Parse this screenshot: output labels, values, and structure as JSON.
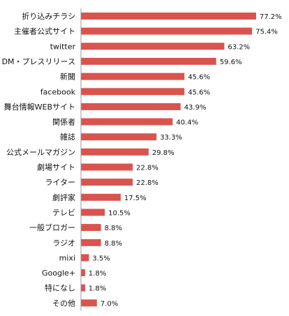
{
  "chart_data": {
    "type": "bar",
    "orientation": "horizontal",
    "categories": [
      "折り込みチラシ",
      "主催者公式サイト",
      "twitter",
      "DM・プレスリリース",
      "新聞",
      "facebook",
      "舞台情報WEBサイト",
      "関係者",
      "雑誌",
      "公式メールマガジン",
      "劇場サイト",
      "ライター",
      "劇評家",
      "テレビ",
      "一般ブロガー",
      "ラジオ",
      "mixi",
      "Google+",
      "特になし",
      "その他"
    ],
    "values": [
      77.2,
      75.4,
      63.2,
      59.6,
      45.6,
      45.6,
      43.9,
      40.4,
      33.3,
      29.8,
      22.8,
      22.8,
      17.5,
      10.5,
      8.8,
      8.8,
      3.5,
      1.8,
      1.8,
      7.0
    ],
    "value_labels": [
      "77.2%",
      "75.4%",
      "63.2%",
      "59.6%",
      "45.6%",
      "45.6%",
      "43.9%",
      "40.4%",
      "33.3%",
      "29.8%",
      "22.8%",
      "22.8%",
      "17.5%",
      "10.5%",
      "8.8%",
      "8.8%",
      "3.5%",
      "1.8%",
      "1.8%",
      "7.0%"
    ],
    "value_unit": "%",
    "title": "",
    "xlabel": "",
    "ylabel": "",
    "xlim": [
      0,
      100
    ],
    "grid": false,
    "legend": "none",
    "bar_color": "#d9534f"
  }
}
